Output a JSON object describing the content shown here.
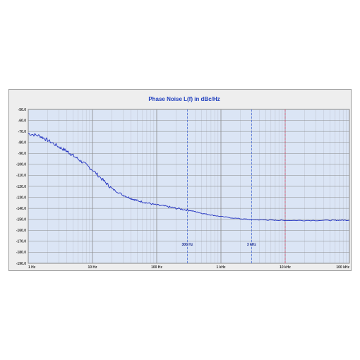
{
  "chart_data": {
    "type": "line",
    "title": "Phase Noise L(f) in dBc/Hz",
    "xscale": "log",
    "xlim": [
      1,
      100000
    ],
    "ylim": [
      -190,
      -50
    ],
    "x_tick_values": [
      1,
      10,
      100,
      1000,
      10000,
      100000
    ],
    "x_tick_labels": [
      "1 Hz",
      "10 Hz",
      "100 Hz",
      "1 kHz",
      "10 kHz",
      "100 kHz"
    ],
    "y_tick_values": [
      -50,
      -60,
      -70,
      -80,
      -90,
      -100,
      -110,
      -120,
      -130,
      -140,
      -150,
      -160,
      -170,
      -180,
      -190
    ],
    "y_tick_labels": [
      "-50.0",
      "-60.0",
      "-70.0",
      "-80.0",
      "-90.0",
      "-100.0",
      "-110.0",
      "-120.0",
      "-130.0",
      "-140.0",
      "-150.0",
      "-160.0",
      "-170.0",
      "-180.0",
      "-190.0"
    ],
    "grid": true,
    "markers": [
      {
        "x": 300,
        "label": "300 Hz",
        "color": "#4d6fd9"
      },
      {
        "x": 3000,
        "label": "3 kHz",
        "color": "#4d6fd9"
      },
      {
        "x": 10000,
        "label": "",
        "color": "#d94d6f"
      }
    ],
    "series": [
      {
        "color": "#1f2fbf",
        "x": [
          1,
          1.5,
          2,
          3,
          4,
          5,
          7,
          10,
          15,
          20,
          30,
          40,
          50,
          70,
          100,
          150,
          200,
          300,
          400,
          500,
          700,
          1000,
          2000,
          3000,
          5000,
          7000,
          10000,
          20000,
          50000,
          70000,
          100000
        ],
        "y": [
          -72,
          -74,
          -78,
          -84,
          -88,
          -92,
          -98,
          -105,
          -115,
          -122,
          -128,
          -131,
          -133,
          -135,
          -137,
          -138.5,
          -140,
          -141.5,
          -143,
          -144.5,
          -146,
          -147.5,
          -149.5,
          -150.2,
          -150.6,
          -150.8,
          -151,
          -151,
          -151,
          -150.8,
          -150.8
        ]
      }
    ]
  },
  "colors": {
    "background": "#eeeeee",
    "plot_area": "#dbe5f5",
    "grid_major": "#8a8a8a",
    "grid_minor": "#b5b9c4",
    "title": "#1f3fbf"
  }
}
